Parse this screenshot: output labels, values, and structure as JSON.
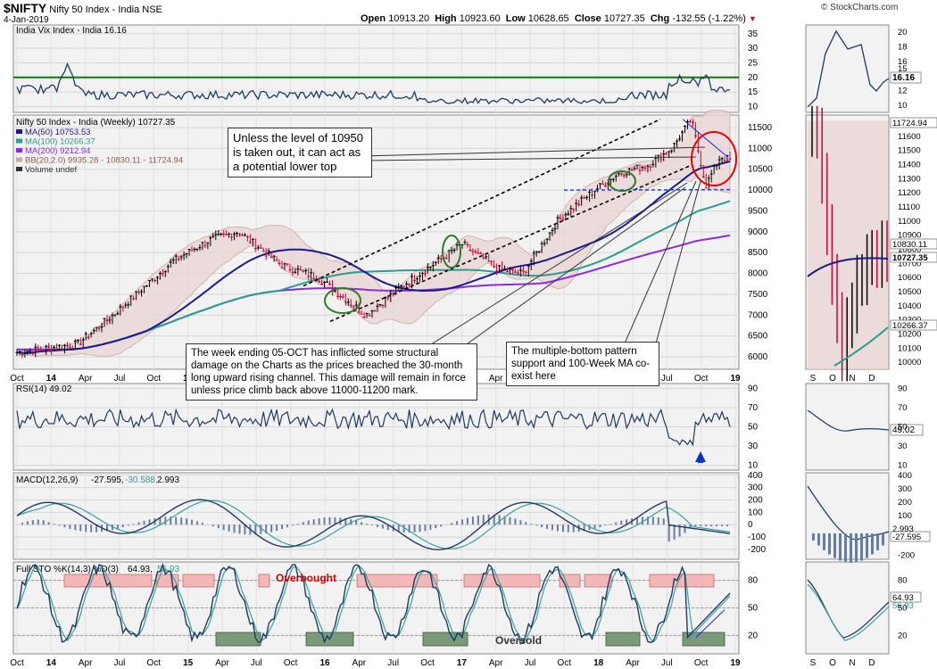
{
  "header": {
    "symbol": "$NIFTY",
    "name": "Nifty 50 Index - India",
    "exchange": "NSE",
    "date": "4-Jan-2019",
    "open_label": "Open",
    "open": "10913.20",
    "high_label": "High",
    "high": "10923.60",
    "low_label": "Low",
    "low": "10628.65",
    "close_label": "Close",
    "close": "10727.35",
    "chg_label": "Chg",
    "chg": "-132.55 (-1.22%)",
    "copyright": "© StockCharts.com"
  },
  "annotations": {
    "lower_top": "Unless the level of 10950 is taken out, it can act as a potential lower top",
    "structural_damage": "The week ending 05-OCT has inflicted some structural damage on the Charts as the prices breached the 30-month long upward rising channel. This damage will remain in force unless price climb back above 11000-11200 mark.",
    "multiple_bottom": "The multiple-bottom pattern support and 100-Week MA co-exist here",
    "overbought": "Overbought",
    "oversold": "Oversold"
  },
  "colors": {
    "price_up": "#000000",
    "price_down": "#cc0033",
    "ma50": "#1a1a8c",
    "ma100": "#2a9d8f",
    "ma200": "#8a2be2",
    "bb": "#c9a9a6",
    "vix_line": "#1f3a5f",
    "vix_ref": "#008000",
    "highlight_red": "#e60000",
    "stoch_k": "#1f3a5f",
    "stoch_d": "#3aa0a0"
  },
  "chart_data": [
    {
      "id": "vix",
      "type": "line",
      "title": "India Vix Index - India 16.16",
      "last": "16.16",
      "ylim": [
        8,
        38
      ],
      "yticks": [
        10,
        15,
        20,
        25,
        30,
        35
      ],
      "reference_level": 20,
      "right_ticks": [
        10,
        12,
        14,
        15,
        16,
        18,
        20
      ]
    },
    {
      "id": "price",
      "type": "candlestick",
      "title": "Nifty 50 Index - India (Weekly) 10727.35",
      "legend": [
        {
          "label": "MA(50) 10753.53",
          "color": "#1a1a8c"
        },
        {
          "label": "MA(100) 10266.37",
          "color": "#2a9d8f"
        },
        {
          "label": "MA(200) 9212.94",
          "color": "#8a2be2"
        },
        {
          "label": "BB(20,2.0) 9935.28 - 10830.11 - 11724.94",
          "color": "#c9a9a6"
        },
        {
          "label": "Volume undef",
          "color": "#333333"
        }
      ],
      "ylim": [
        5700,
        11800
      ],
      "yticks": [
        6000,
        6500,
        7000,
        7500,
        8000,
        8500,
        9000,
        9500,
        10000,
        10500,
        11000,
        11500
      ],
      "right_ticks": [
        10000,
        10100,
        10200,
        10300,
        10400,
        10500,
        10600,
        10700,
        10800,
        10900,
        11000,
        11100,
        11200,
        11300,
        11400,
        11500,
        11600
      ],
      "right_labels": [
        "11724.94",
        "10830.11",
        "10727.35",
        "10266.37"
      ],
      "x_labels": [
        "Oct",
        "14",
        "Apr",
        "Jul",
        "Oct",
        "15",
        "Apr",
        "Jul",
        "Oct",
        "16",
        "Apr",
        "Jul",
        "Oct",
        "17",
        "Apr",
        "Jul",
        "Oct",
        "18",
        "Apr",
        "Jul",
        "Oct",
        "19"
      ],
      "right_x_labels": [
        "S",
        "O",
        "N",
        "D"
      ],
      "last": 10727.35
    },
    {
      "id": "rsi",
      "type": "line",
      "title": "RSI(14) 49.02",
      "last": "49.02",
      "ylim": [
        5,
        95
      ],
      "yticks": [
        10,
        30,
        50,
        70,
        90
      ]
    },
    {
      "id": "macd",
      "type": "line",
      "title": "MACD(12,26,9) -27.595, -30.588, 2.993",
      "title_parts": [
        "MACD(12,26,9)",
        "-27.595,",
        "-30.588,",
        "2.993"
      ],
      "last_labels": [
        "2.993",
        "-27.595"
      ],
      "ylim": [
        -280,
        420
      ],
      "yticks": [
        -200,
        -100,
        0,
        100,
        200,
        300,
        400
      ]
    },
    {
      "id": "stoch",
      "type": "line",
      "title": "Full STO %K(14,3) %D(3) 64.93, 56.93",
      "title_parts": [
        "Full STO %K(14,3) %D(3)",
        "64.93,",
        "56.93"
      ],
      "last_labels": [
        "64.93",
        "56.93"
      ],
      "ylim": [
        0,
        100
      ],
      "yticks": [
        20,
        50,
        80
      ],
      "x_labels": [
        "Oct",
        "14",
        "Apr",
        "Jul",
        "Oct",
        "15",
        "Apr",
        "Jul",
        "Oct",
        "16",
        "Apr",
        "Jul",
        "Oct",
        "17",
        "Apr",
        "Jul",
        "Oct",
        "18",
        "Apr",
        "Jul",
        "Oct",
        "19"
      ],
      "right_x_labels": [
        "S",
        "O",
        "N",
        "D"
      ]
    }
  ]
}
